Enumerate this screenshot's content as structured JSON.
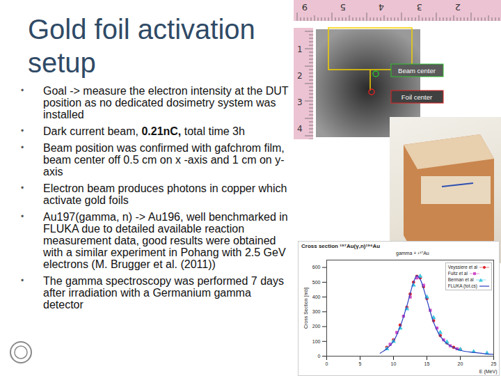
{
  "title": "Gold foil activation setup",
  "bullets": [
    [
      {
        "text": "Goal -> measure the electron intensity at the DUT position as no dedicated dosimetry system was installed",
        "bold": false
      }
    ],
    [
      {
        "text": "Dark current beam, ",
        "bold": false
      },
      {
        "text": "0.21nC,",
        "bold": true
      },
      {
        "text": " total time 3h",
        "bold": false
      }
    ],
    [
      {
        "text": "Beam position was confirmed with gafchrom film, beam center off 0.5 cm on x -axis and 1 cm on y-axis",
        "bold": false
      }
    ],
    [
      {
        "text": "Electron beam produces photons in copper which activate gold foils",
        "bold": false
      }
    ],
    [
      {
        "text": "Au197(gamma, n) -> Au196, well benchmarked in FLUKA due to detailed available reaction measurement data, good results were obtained with a similar experiment in Pohang with 2.5 GeV electrons (M. Brugger et al. (2011))",
        "bold": false
      }
    ],
    [
      {
        "text": "The gamma spectroscopy was performed 7 days after irradiation with a Germanium gamma detector",
        "bold": false
      }
    ]
  ],
  "film_image": {
    "ruler_top": [
      "9",
      "5",
      "4",
      "3",
      "2"
    ],
    "ruler_left": [
      "1",
      "2",
      "3",
      "4"
    ],
    "labels": [
      "Beam center",
      "Foil center"
    ]
  },
  "chart_data": {
    "type": "scatter",
    "title": "Cross section ¹⁹⁷Au(γ,n)¹⁹⁶Au",
    "subtitle": "gamma + ¹⁹⁷Au",
    "x_label": "E (MeV)",
    "y_label": "Cross Section [mb]",
    "xlim": [
      0,
      25
    ],
    "xticks": [
      0,
      5,
      10,
      15,
      20,
      25
    ],
    "ylim": [
      0,
      650
    ],
    "yticks": [
      0,
      100,
      200,
      300,
      400,
      500,
      600
    ],
    "legend": "upper right",
    "series": [
      {
        "name": "Veyssiere et al",
        "color": "#e0202a",
        "type": "scatter",
        "marker": "circle",
        "x": [
          9,
          10,
          11,
          12,
          12.5,
          13,
          13.5,
          14,
          14.5,
          15,
          16,
          17,
          18,
          19,
          20
        ],
        "values": [
          60,
          110,
          210,
          330,
          420,
          500,
          540,
          530,
          470,
          390,
          240,
          140,
          90,
          60,
          45
        ]
      },
      {
        "name": "Fultz et al",
        "color": "#d04fc8",
        "type": "scatter",
        "marker": "square",
        "x": [
          9.5,
          10.5,
          11.5,
          12.5,
          13.5,
          14.5,
          15.5,
          16.5,
          17.5,
          18.5,
          19.5
        ],
        "values": [
          80,
          160,
          270,
          400,
          530,
          480,
          310,
          190,
          110,
          70,
          50
        ]
      },
      {
        "name": "Berman et al",
        "color": "#3cc8e0",
        "type": "scatter",
        "marker": "triangle",
        "x": [
          9,
          10,
          11,
          12,
          13,
          14,
          15,
          16,
          17,
          18,
          20,
          22,
          24
        ],
        "values": [
          50,
          100,
          190,
          320,
          480,
          540,
          400,
          260,
          160,
          95,
          45,
          30,
          20
        ]
      },
      {
        "name": "FLUKA (tot.cs)",
        "color": "#2a3fbf",
        "type": "line",
        "line_style": "solid",
        "x": [
          8,
          9,
          10,
          11,
          12,
          13,
          13.5,
          14,
          15,
          16,
          17,
          18,
          20,
          22,
          24,
          25
        ],
        "values": [
          20,
          50,
          100,
          200,
          340,
          500,
          545,
          520,
          380,
          230,
          135,
          85,
          40,
          25,
          15,
          12
        ]
      }
    ]
  }
}
